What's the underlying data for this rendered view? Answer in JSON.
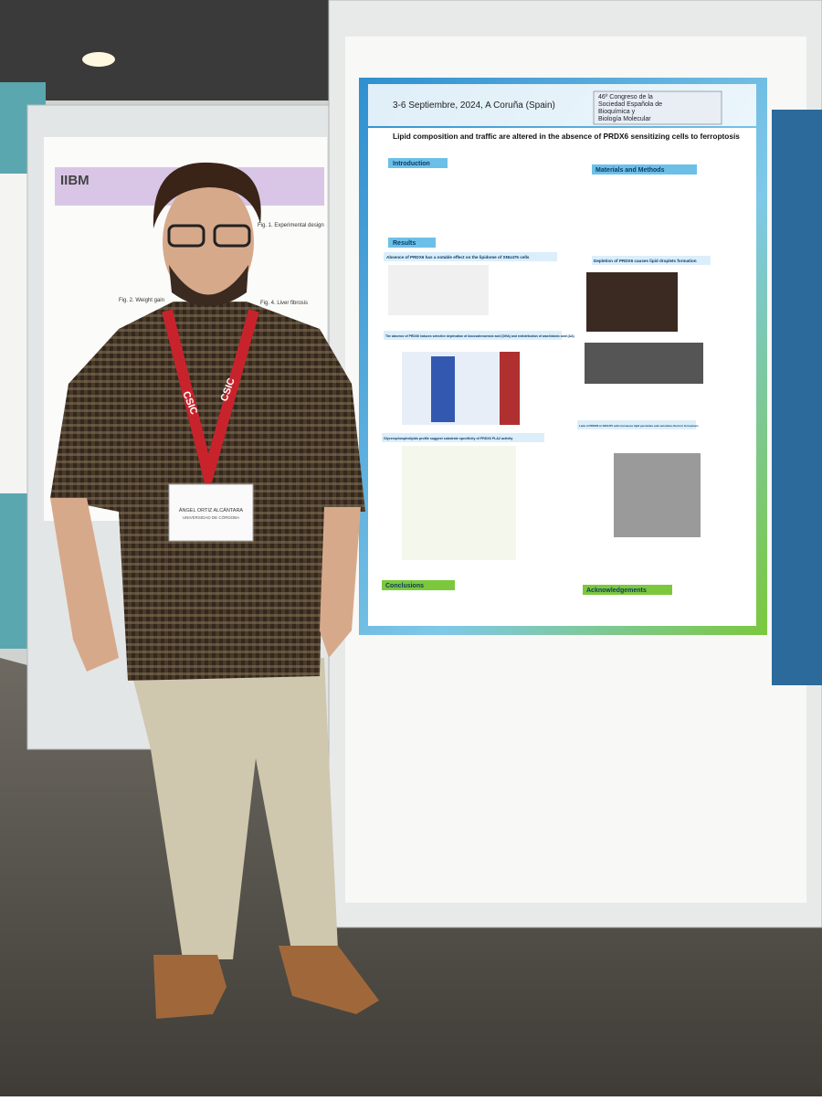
{
  "left_poster": {
    "logo": "IIBM",
    "figures": [
      "Fig. 1. Experimental design",
      "Fig. 2. Weight gain",
      "Fig. 4. Liver fibrosis"
    ]
  },
  "poster": {
    "dates": "3-6 Septiembre, 2024, A Coruña (Spain)",
    "congress": [
      "46º Congreso de la",
      "Sociedad Española de",
      "Bioquímica y",
      "Biología Molecular"
    ],
    "title": "Lipid composition and traffic are altered in the absence of PRDX6 sensitizing cells to ferroptosis",
    "sections": [
      "Introduction",
      "Materials and Methods",
      "Results",
      "Conclusions",
      "Acknowledgements"
    ],
    "results": [
      "Absence of PRDX6 has a notable effect on the lipidome of SNU475 cells",
      "Depletion of PRDX6 causes lipid droplets formation",
      "The absence of PRDX6 induces selective deprivation of docosahexaenoic acid (DHA) and redistribution of arachidonic acid (AA)",
      "Glycerophospholipids profile suggest substrate specificity of PRDX6 PLA2 activity",
      "Lack of PRDX6 in SNU475 cells increases lipid peroxides and sensitizes them to ferroptosis"
    ]
  },
  "badge": {
    "lanyard": "CSIC",
    "name": "ÁNGEL ORTIZ ALCÁNTARA",
    "affiliation": "UNIVERSIDAD DE CÓRDOBA"
  }
}
